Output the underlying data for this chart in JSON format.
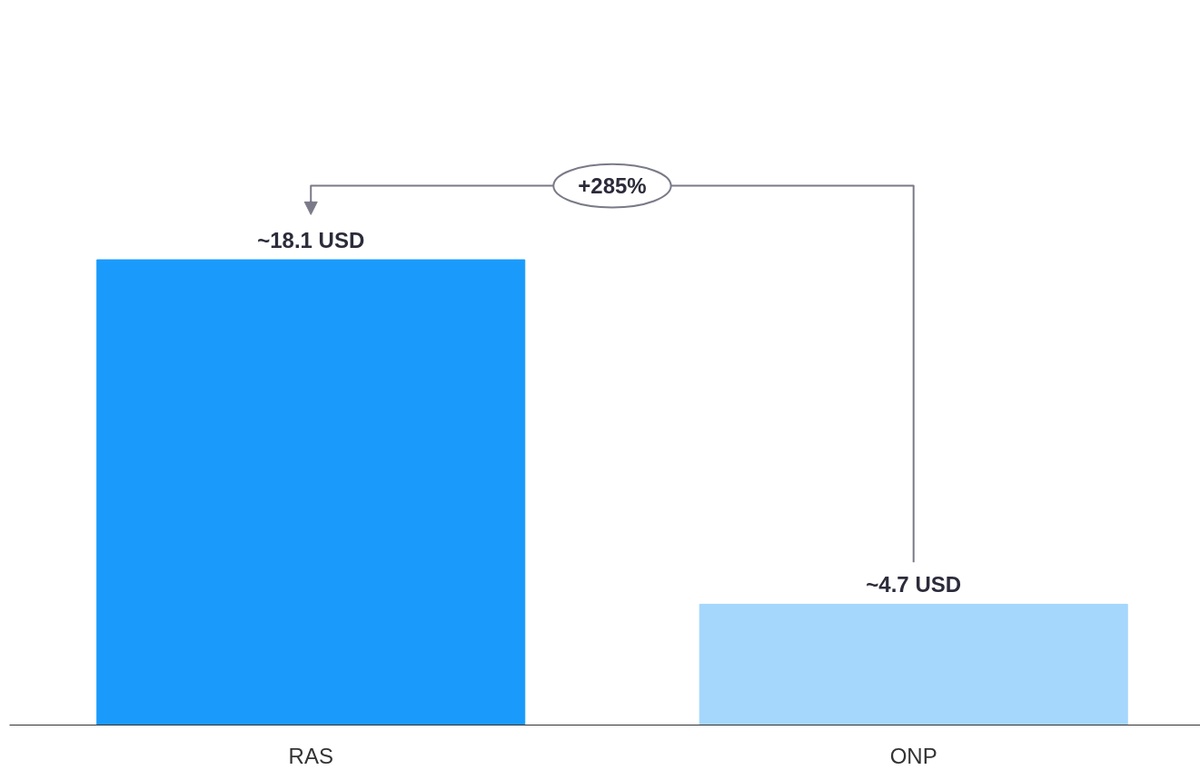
{
  "chart_data": {
    "type": "bar",
    "categories": [
      "RAS",
      "ONP"
    ],
    "values": [
      18.1,
      4.7
    ],
    "colors": [
      "#1a9bfc",
      "#a5d6fc"
    ],
    "value_labels": [
      "~18.1 USD",
      "~4.7 USD"
    ],
    "annotations": [
      "+285%"
    ],
    "tick_labels": "x",
    "grid": false
  }
}
